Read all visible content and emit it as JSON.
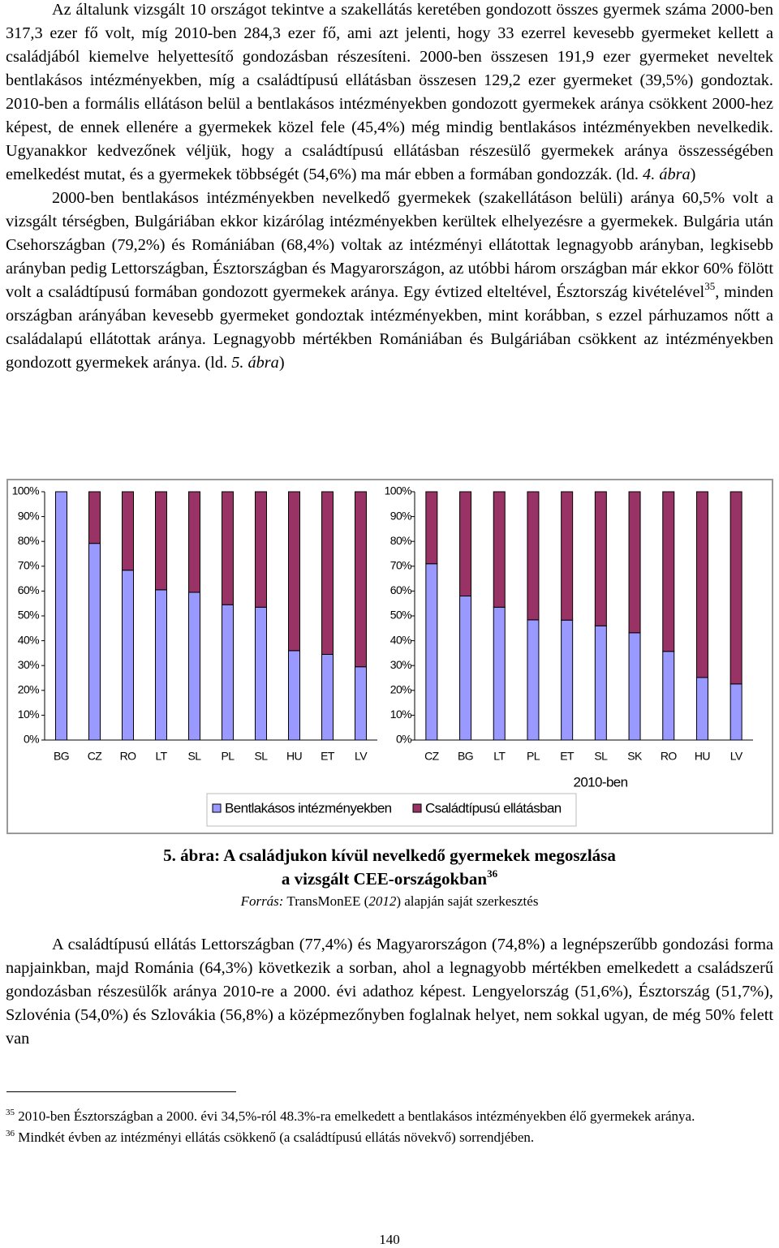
{
  "paragraphs": [
    [
      {
        "text": "Az általunk vizsgált 10 országot tekintve a szakellátás keretében gondozott összes gyermek száma 2000-ben 317,3 ezer fő volt, míg 2010-ben 284,3 ezer fő, ami azt jelenti, hogy 33 ezerrel kevesebb gyermeket kellett a családjából kiemelve helyettesítő gondozásban részesíteni. 2000-ben összesen 191,9 ezer gyermeket neveltek bentlakásos intézményekben, míg a családtípusú ellátásban összesen 129,2 ezer gyermeket (39,5%) gondoztak. 2010-ben a formális ellátáson belül a bentlakásos intézményekben gondozott gyermekek aránya csökkent 2000-hez képest, de ennek ellenére a gyermekek közel fele (45,4%) még mindig bentlakásos intézményekben nevelkedik. Ugyanakkor kedvezőnek véljük, hogy a családtípusú ellátásban részesülő gyermekek aránya összességében emelkedést mutat, és a gyermekek többségét (54,6%) ma már ebben a formában gondozzák. (ld. "
      },
      {
        "text": "4. ábra",
        "style": "italic"
      },
      {
        "text": ")"
      }
    ],
    [
      {
        "text": "2000-ben bentlakásos intézményekben nevelkedő gyermekek (szakellátáson belüli) aránya 60,5% volt a vizsgált térségben, Bulgáriában ekkor kizárólag intézményekben kerültek elhelyezésre a gyermekek. Bulgária után Csehországban (79,2%) és Romániában (68,4%) voltak az intézményi ellátottak legnagyobb arányban, legkisebb arányban pedig Lettországban, Észtországban és Magyarországon, az utóbbi három országban már ekkor 60% fölött volt a családtípusú formában gondozott gyermekek aránya. Egy évtized elteltével, Észtország kivételével"
      },
      {
        "text": "35",
        "style": "sup"
      },
      {
        "text": ", minden országban arányában kevesebb gyermeket gondoztak intézményekben, mint korábban, s ezzel párhuzamos nőtt a családalapú ellátottak aránya. Legnagyobb mértékben Romániában és Bulgáriában csökkent az intézményekben gondozott gyermekek aránya. (ld. "
      },
      {
        "text": "5. ábra",
        "style": "italic"
      },
      {
        "text": ")"
      }
    ],
    [
      {
        "text": "A családtípusú ellátás Lettországban (77,4%) és Magyarországon (74,8%) a legnépszerűbb gondozási forma napjainkban, majd Románia (64,3%) következik a sorban, ahol a legnagyobb mértékben emelkedett a családszerű gondozásban részesülők aránya 2010-re a 2000. évi adathoz képest. Lengyelország (51,6%), Észtország (51,7%), Szlovénia (54,0%) és Szlovákia (56,8%) a középmezőnyben foglalnak helyet, nem sokkal ugyan, de még 50% felett van"
      }
    ]
  ],
  "chart_data": [
    {
      "type": "bar",
      "stacked": true,
      "categories": [
        "BG",
        "CZ",
        "RO",
        "LT",
        "SL",
        "PL",
        "SL",
        "HU",
        "ET",
        "LV"
      ],
      "series": [
        {
          "name": "Bentlakásos intézményekben",
          "color": "#9999ff",
          "values": [
            100,
            79.2,
            68.4,
            60.5,
            59.5,
            54.5,
            53.5,
            36,
            34.5,
            29.5
          ]
        },
        {
          "name": "Családtípusú ellátásban",
          "color": "#993366",
          "values": [
            0,
            20.8,
            31.6,
            39.5,
            40.5,
            45.5,
            46.5,
            64,
            65.5,
            70.5
          ]
        }
      ],
      "ylim": [
        0,
        100
      ],
      "yticks": [
        {
          "value": 0,
          "label": "0%"
        },
        {
          "value": 10,
          "label": "10%"
        },
        {
          "value": 20,
          "label": "20%"
        },
        {
          "value": 30,
          "label": "30%"
        },
        {
          "value": 40,
          "label": "40%"
        },
        {
          "value": 50,
          "label": "50%"
        },
        {
          "value": 60,
          "label": "60%"
        },
        {
          "value": 70,
          "label": "70%"
        },
        {
          "value": 80,
          "label": "80%"
        },
        {
          "value": 90,
          "label": "90%"
        },
        {
          "value": 100,
          "label": "100%"
        }
      ]
    },
    {
      "type": "bar",
      "stacked": true,
      "x_label": "2010-ben",
      "categories": [
        "CZ",
        "BG",
        "LT",
        "PL",
        "ET",
        "SL",
        "SK",
        "RO",
        "HU",
        "LV"
      ],
      "series": [
        {
          "color": "#9999ff",
          "values": [
            71,
            58,
            53.5,
            48.4,
            48.3,
            46,
            43.2,
            35.7,
            25.2,
            22.6
          ]
        },
        {
          "color": "#993366",
          "values": [
            29,
            42,
            46.5,
            51.6,
            51.7,
            54,
            56.8,
            64.3,
            74.8,
            77.4
          ]
        }
      ],
      "ylim": [
        0,
        100
      ],
      "yticks": [
        {
          "value": 0,
          "label": "0%"
        },
        {
          "value": 10,
          "label": "10%"
        },
        {
          "value": 20,
          "label": "20%"
        },
        {
          "value": 30,
          "label": "30%"
        },
        {
          "value": 40,
          "label": "40%"
        },
        {
          "value": 50,
          "label": "50%"
        },
        {
          "value": 60,
          "label": "60%"
        },
        {
          "value": 70,
          "label": "70%"
        },
        {
          "value": 80,
          "label": "80%"
        },
        {
          "value": 90,
          "label": "90%"
        },
        {
          "value": 100,
          "label": "100%"
        }
      ]
    }
  ],
  "caption": {
    "line1": "5. ábra: A családjukon kívül nevelkedő gyermekek megoszlása",
    "line2": "a vizsgált CEE-országokban",
    "sup": "36",
    "source": [
      {
        "text": "Forrás:",
        "style": "italic"
      },
      {
        "text": " TransMonEE ("
      },
      {
        "text": "2012",
        "style": "italic"
      },
      {
        "text": ") alapján saját szerkesztés"
      }
    ]
  },
  "footnotes": [
    {
      "number": "35",
      "text": "2010-ben Észtországban a 2000. évi 34,5%-ról 48.3%-ra emelkedett a bentlakásos intézményekben élő gyermekek aránya."
    },
    {
      "number": "36",
      "text": "Mindkét évben az intézményi ellátás csökkenő (a családtípusú ellátás növekvő) sorrendjében."
    }
  ],
  "page_number": "140"
}
